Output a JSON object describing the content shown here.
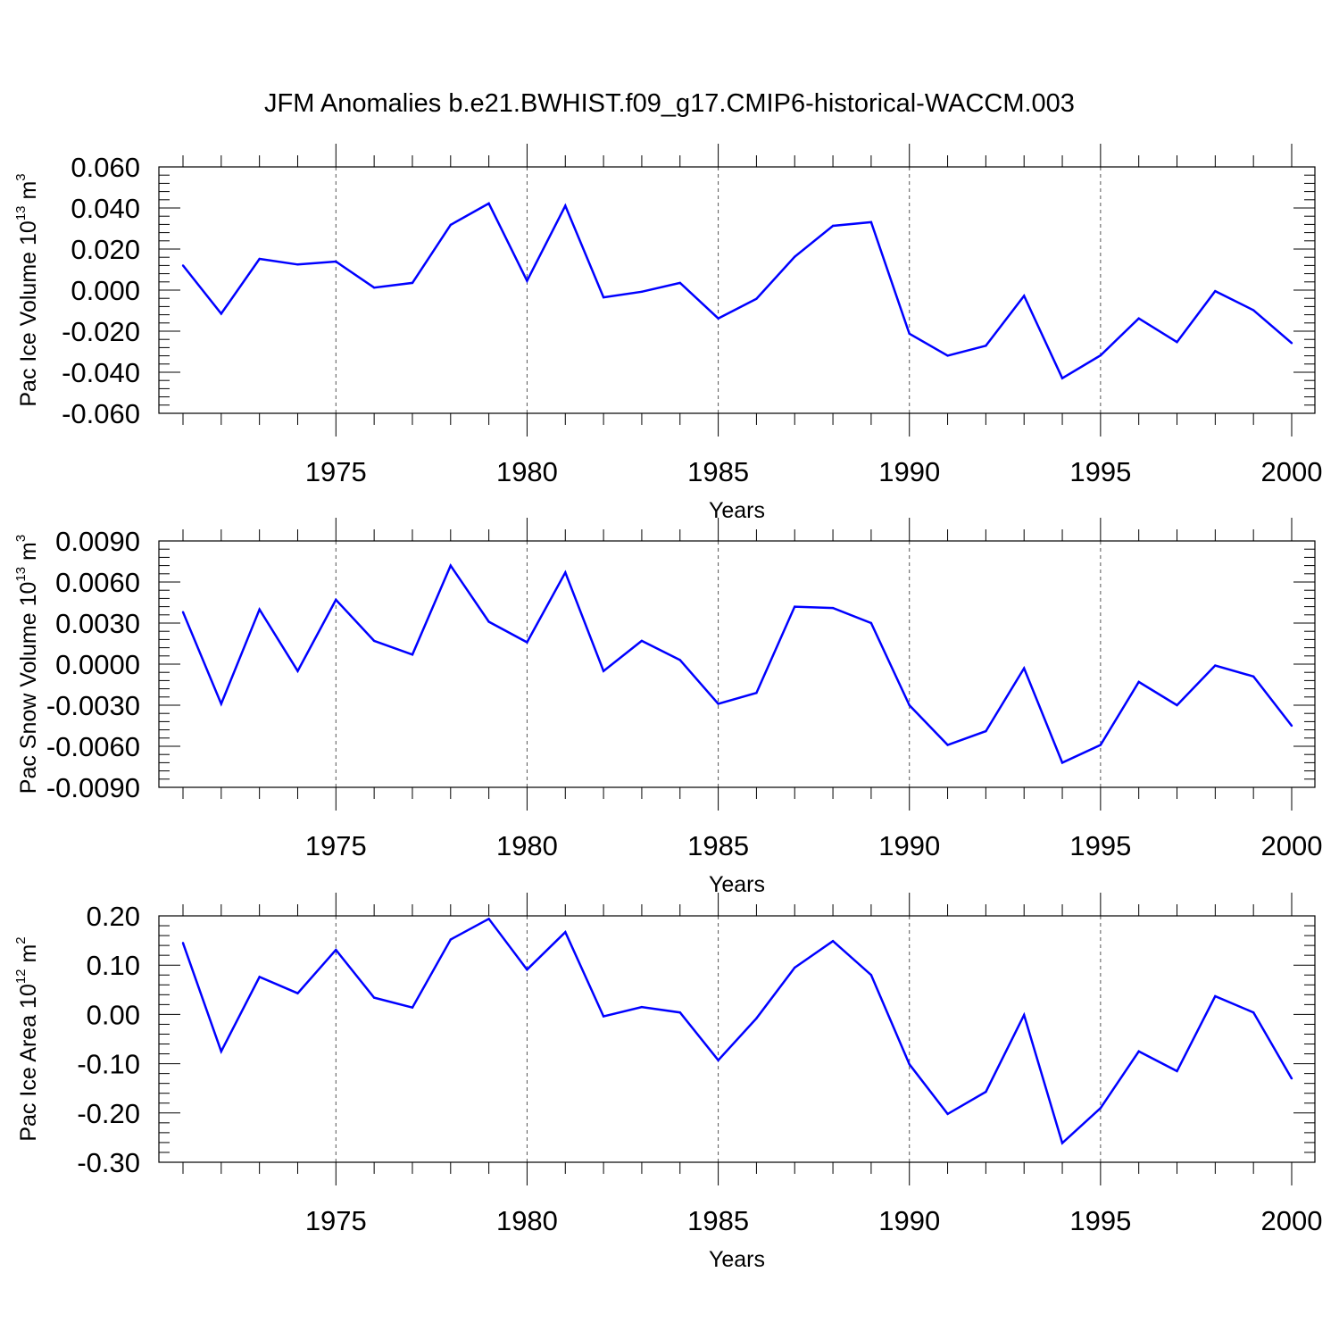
{
  "title": "JFM Anomalies b.e21.BWHIST.f09_g17.CMIP6-historical-WACCM.003",
  "line_color": "#0000ff",
  "chart_data": [
    {
      "type": "line",
      "name": "ice_volume",
      "ylabel_main": "Pac Ice Volume 10",
      "ylabel_exp": "13",
      "ylabel_unit": " m",
      "ylabel_unit_exp": "3",
      "xlabel": "Years",
      "xlim": [
        1971,
        2000
      ],
      "ylim": [
        -0.06,
        0.06
      ],
      "xticks": [
        1975,
        1980,
        1985,
        1990,
        1995,
        2000
      ],
      "xtick_labels": [
        "1975",
        "1980",
        "1985",
        "1990",
        "1995",
        "2000"
      ],
      "yticks": [
        -0.06,
        -0.04,
        -0.02,
        0.0,
        0.02,
        0.04,
        0.06
      ],
      "ytick_labels": [
        "-0.060",
        "-0.040",
        "-0.020",
        "0.000",
        "0.020",
        "0.040",
        "0.060"
      ],
      "grid": "vertical dashed at major x ticks",
      "x": [
        1971,
        1972,
        1973,
        1974,
        1975,
        1976,
        1977,
        1978,
        1979,
        1980,
        1981,
        1982,
        1983,
        1984,
        1985,
        1986,
        1987,
        1988,
        1989,
        1990,
        1991,
        1992,
        1993,
        1994,
        1995,
        1996,
        1997,
        1998,
        1999,
        2000
      ],
      "y": [
        0.012,
        -0.0115,
        0.0152,
        0.0125,
        0.0139,
        0.0012,
        0.0035,
        0.0318,
        0.0422,
        0.0045,
        0.0411,
        -0.0035,
        -0.0008,
        0.0035,
        -0.0138,
        -0.0042,
        0.0162,
        0.0313,
        0.0331,
        -0.0212,
        -0.0319,
        -0.0271,
        -0.0028,
        -0.0429,
        -0.0318,
        -0.0138,
        -0.0253,
        -0.0005,
        -0.0098,
        -0.0258
      ]
    },
    {
      "type": "line",
      "name": "snow_volume",
      "ylabel_main": "Pac Snow Volume 10",
      "ylabel_exp": "13",
      "ylabel_unit": " m",
      "ylabel_unit_exp": "3",
      "xlabel": "Years",
      "xlim": [
        1971,
        2000
      ],
      "ylim": [
        -0.009,
        0.009
      ],
      "xticks": [
        1975,
        1980,
        1985,
        1990,
        1995,
        2000
      ],
      "xtick_labels": [
        "1975",
        "1980",
        "1985",
        "1990",
        "1995",
        "2000"
      ],
      "yticks": [
        -0.009,
        -0.006,
        -0.003,
        0.0,
        0.003,
        0.006,
        0.009
      ],
      "ytick_labels": [
        "-0.0090",
        "-0.0060",
        "-0.0030",
        "0.0000",
        "0.0030",
        "0.0060",
        "0.0090"
      ],
      "grid": "vertical dashed at major x ticks",
      "x": [
        1971,
        1972,
        1973,
        1974,
        1975,
        1976,
        1977,
        1978,
        1979,
        1980,
        1981,
        1982,
        1983,
        1984,
        1985,
        1986,
        1987,
        1988,
        1989,
        1990,
        1991,
        1992,
        1993,
        1994,
        1995,
        1996,
        1997,
        1998,
        1999,
        2000
      ],
      "y": [
        0.0038,
        -0.0029,
        0.004,
        -0.0005,
        0.0047,
        0.0017,
        0.0007,
        0.0072,
        0.0031,
        0.0016,
        0.0067,
        -0.0005,
        0.0017,
        0.0003,
        -0.0029,
        -0.0021,
        0.0042,
        0.0041,
        0.003,
        -0.003,
        -0.0059,
        -0.0049,
        -0.0003,
        -0.0072,
        -0.0059,
        -0.0013,
        -0.003,
        -0.0001,
        -0.0009,
        -0.0045
      ]
    },
    {
      "type": "line",
      "name": "ice_area",
      "ylabel_main": "Pac Ice Area 10",
      "ylabel_exp": "12",
      "ylabel_unit": " m",
      "ylabel_unit_exp": "2",
      "xlabel": "Years",
      "xlim": [
        1971,
        2000
      ],
      "ylim": [
        -0.3,
        0.2
      ],
      "xticks": [
        1975,
        1980,
        1985,
        1990,
        1995,
        2000
      ],
      "xtick_labels": [
        "1975",
        "1980",
        "1985",
        "1990",
        "1995",
        "2000"
      ],
      "yticks": [
        -0.3,
        -0.2,
        -0.1,
        0.0,
        0.1,
        0.2
      ],
      "ytick_labels": [
        "-0.30",
        "-0.20",
        "-0.10",
        "0.00",
        "0.10",
        "0.20"
      ],
      "grid": "vertical dashed at major x ticks",
      "x": [
        1971,
        1972,
        1973,
        1974,
        1975,
        1976,
        1977,
        1978,
        1979,
        1980,
        1981,
        1982,
        1983,
        1984,
        1985,
        1986,
        1987,
        1988,
        1989,
        1990,
        1991,
        1992,
        1993,
        1994,
        1995,
        1996,
        1997,
        1998,
        1999,
        2000
      ],
      "y": [
        0.145,
        -0.075,
        0.076,
        0.043,
        0.131,
        0.034,
        0.014,
        0.152,
        0.194,
        0.091,
        0.167,
        -0.004,
        0.015,
        0.004,
        -0.093,
        -0.008,
        0.095,
        0.149,
        0.08,
        -0.101,
        -0.202,
        -0.157,
        -0.001,
        -0.261,
        -0.19,
        -0.075,
        -0.115,
        0.037,
        0.004,
        -0.13
      ]
    }
  ]
}
